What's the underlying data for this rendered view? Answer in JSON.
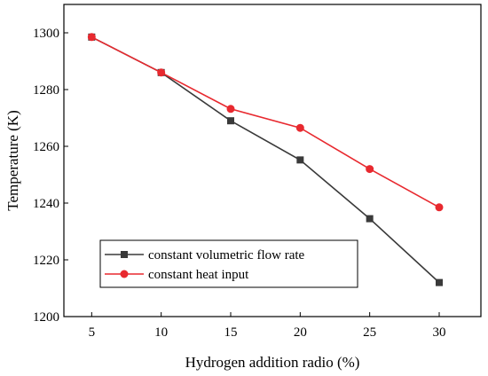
{
  "chart_data": {
    "type": "line",
    "title": "",
    "xlabel": "Hydrogen addition radio (%)",
    "ylabel": "Temperature (K)",
    "x": [
      5,
      10,
      15,
      20,
      25,
      30
    ],
    "xlim": [
      3,
      33
    ],
    "ylim": [
      1200,
      1310
    ],
    "xticks": [
      5,
      10,
      15,
      20,
      25,
      30
    ],
    "yticks": [
      1200,
      1220,
      1240,
      1260,
      1280,
      1300
    ],
    "grid": false,
    "legend_position": "bottom-left",
    "series": [
      {
        "name": "constant volumetric flow rate",
        "values": [
          1298.5,
          1286,
          1269,
          1255.2,
          1234.5,
          1212
        ],
        "color": "#3a3a3a",
        "marker": "square"
      },
      {
        "name": "constant heat input",
        "values": [
          1298.5,
          1286,
          1273.2,
          1266.5,
          1252,
          1238.5
        ],
        "color": "#e8292f",
        "marker": "circle"
      }
    ]
  }
}
